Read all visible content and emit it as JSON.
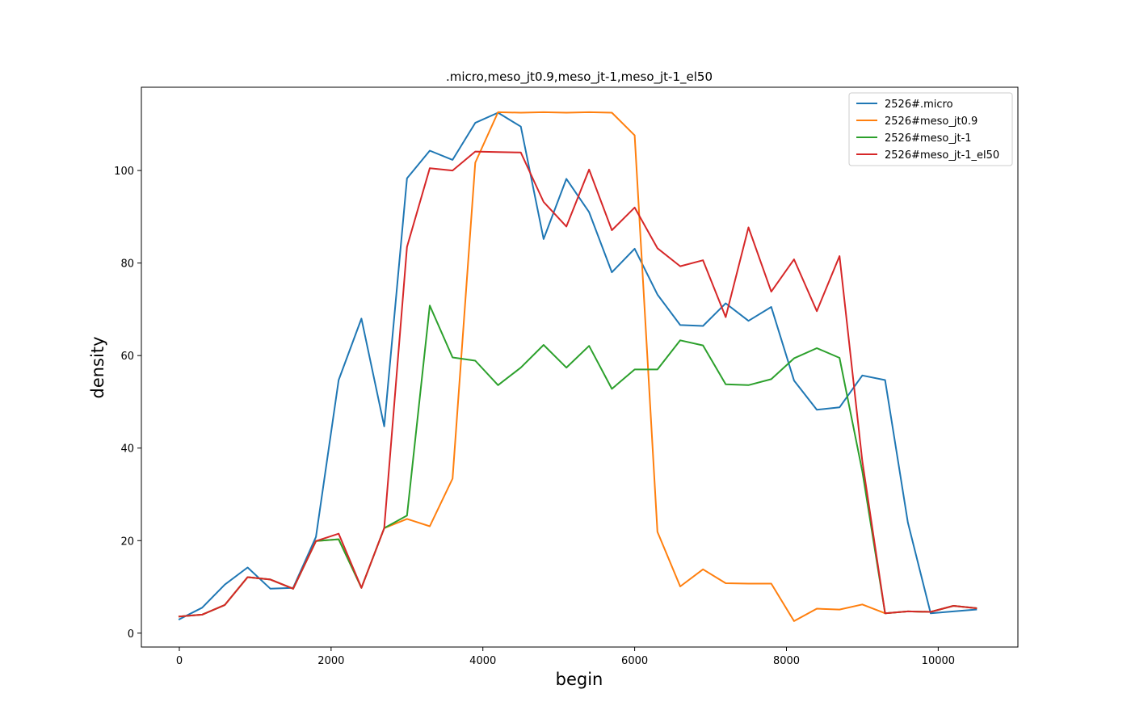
{
  "chart_data": {
    "type": "line",
    "title": ".micro,meso_jt0.9,meso_jt-1,meso_jt-1_el50",
    "xlabel": "begin",
    "ylabel": "density",
    "xlim": [
      -500,
      11050
    ],
    "ylim": [
      -3,
      118
    ],
    "xticks": [
      0,
      2000,
      4000,
      6000,
      8000,
      10000
    ],
    "yticks": [
      0,
      20,
      40,
      60,
      80,
      100
    ],
    "legend_position": "top-right",
    "grid": false,
    "x": [
      0,
      300,
      600,
      900,
      1200,
      1500,
      1800,
      2100,
      2400,
      2700,
      3000,
      3300,
      3600,
      3900,
      4200,
      4500,
      4800,
      5100,
      5400,
      5700,
      6000,
      6300,
      6600,
      6900,
      7200,
      7500,
      7800,
      8100,
      8400,
      8700,
      9000,
      9300,
      9600,
      9900,
      10200,
      10500
    ],
    "series": [
      {
        "name": "2526#.micro",
        "color": "#1f77b4",
        "values": [
          3.0,
          5.5,
          10.5,
          14.2,
          9.6,
          9.8,
          20.8,
          54.7,
          68.0,
          44.7,
          98.3,
          104.3,
          102.3,
          110.3,
          112.5,
          109.5,
          85.2,
          98.2,
          91.0,
          78.0,
          83.1,
          73.2,
          66.6,
          66.4,
          71.3,
          67.5,
          70.5,
          54.6,
          48.3,
          48.8,
          55.7,
          54.7,
          23.9,
          4.3,
          4.7,
          5.1
        ]
      },
      {
        "name": "2526#meso_jt0.9",
        "color": "#ff7f0e",
        "values": [
          3.6,
          4.0,
          6.1,
          12.1,
          11.6,
          9.6,
          19.9,
          20.3,
          9.8,
          22.7,
          24.7,
          23.1,
          33.4,
          101.7,
          112.6,
          112.5,
          112.6,
          112.5,
          112.6,
          112.5,
          107.6,
          21.9,
          10.1,
          13.8,
          10.8,
          10.7,
          10.7,
          2.6,
          5.3,
          5.1,
          6.2,
          4.3,
          4.7,
          4.6,
          5.9,
          5.4
        ]
      },
      {
        "name": "2526#meso_jt-1",
        "color": "#2ca02c",
        "values": [
          3.6,
          4.0,
          6.1,
          12.1,
          11.6,
          9.6,
          19.9,
          20.3,
          9.8,
          22.7,
          25.4,
          70.8,
          59.6,
          58.9,
          53.6,
          57.4,
          62.3,
          57.4,
          62.1,
          52.8,
          57.0,
          57.0,
          63.3,
          62.2,
          53.8,
          53.6,
          54.9,
          59.4,
          61.6,
          59.5,
          35.0,
          4.3,
          4.7,
          4.6,
          5.9,
          5.4
        ]
      },
      {
        "name": "2526#meso_jt-1_el50",
        "color": "#d62728",
        "values": [
          3.6,
          4.0,
          6.1,
          12.1,
          11.6,
          9.6,
          19.9,
          21.5,
          9.8,
          22.7,
          83.5,
          100.5,
          100.0,
          104.1,
          104.0,
          103.9,
          93.2,
          87.9,
          100.2,
          87.1,
          92.0,
          83.2,
          79.3,
          80.6,
          68.3,
          87.7,
          73.8,
          80.8,
          69.6,
          81.5,
          37.2,
          4.3,
          4.7,
          4.6,
          5.9,
          5.4
        ]
      }
    ]
  }
}
